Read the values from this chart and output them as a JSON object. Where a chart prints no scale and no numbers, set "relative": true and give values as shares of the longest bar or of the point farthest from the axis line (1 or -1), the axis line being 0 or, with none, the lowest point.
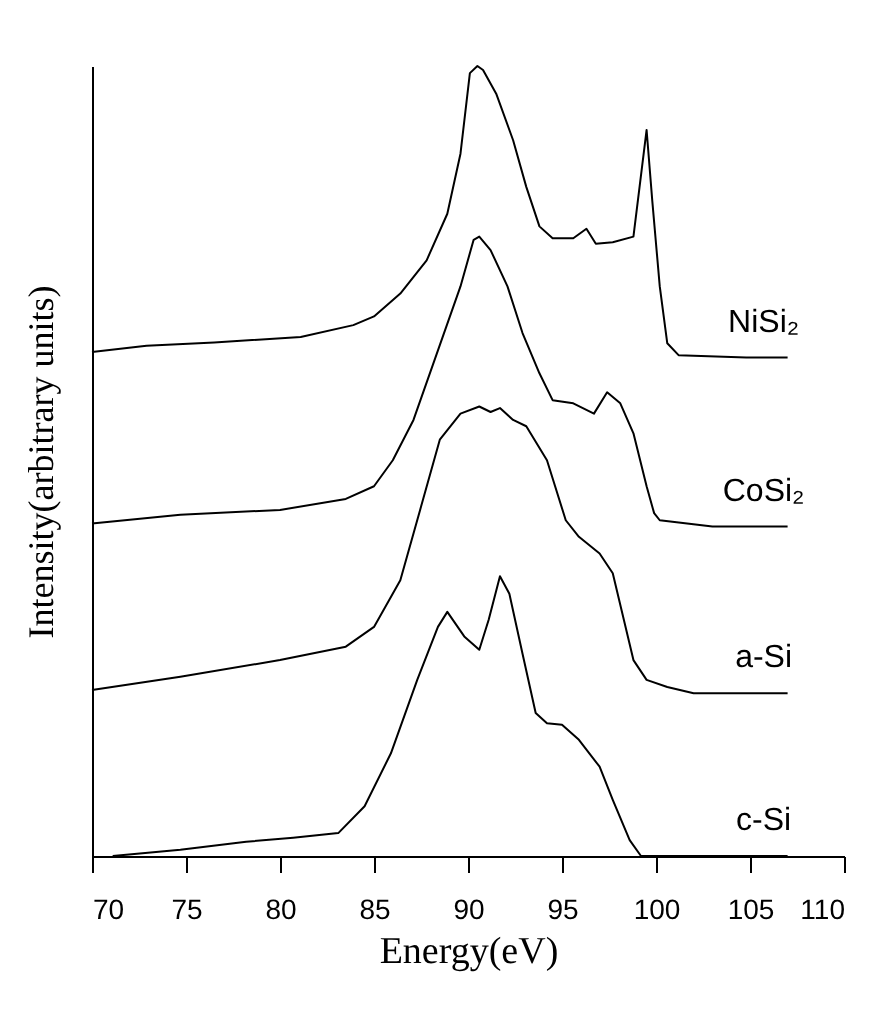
{
  "chart_data": {
    "type": "line",
    "relative": true,
    "xlabel": "Energy(eV)",
    "ylabel": "Intensity(arbitrary   units)",
    "xlim": [
      70,
      110
    ],
    "xticks": [
      70,
      75,
      80,
      85,
      90,
      95,
      100,
      105,
      110
    ],
    "legend": false,
    "grid": false,
    "marker": "none",
    "line_style": "solid",
    "series": [
      {
        "name": "NiSi₂",
        "color": "#000000",
        "x": [
          70,
          72.9,
          76.5,
          81.1,
          83.9,
          85.0,
          86.4,
          87.8,
          88.9,
          89.6,
          90.1,
          90.5,
          90.8,
          91.5,
          92.4,
          93.1,
          93.8,
          94.5,
          95.6,
          96.3,
          96.8,
          97.7,
          98.8,
          99.5,
          99.8,
          100.2,
          100.6,
          101.2,
          104.8,
          107.0
        ],
        "values": [
          0.638,
          0.646,
          0.65,
          0.657,
          0.672,
          0.683,
          0.712,
          0.754,
          0.813,
          0.889,
          0.991,
          1.0,
          0.995,
          0.965,
          0.906,
          0.847,
          0.797,
          0.782,
          0.782,
          0.794,
          0.775,
          0.777,
          0.784,
          0.919,
          0.83,
          0.721,
          0.649,
          0.634,
          0.631,
          0.631
        ]
      },
      {
        "name": "CoSi₂",
        "color": "#000000",
        "x": [
          70,
          74.7,
          80.0,
          83.5,
          85.0,
          86.0,
          87.1,
          89.6,
          90.3,
          90.6,
          91.2,
          92.1,
          92.9,
          93.8,
          94.5,
          95.6,
          96.7,
          97.4,
          98.1,
          98.8,
          99.5,
          99.9,
          100.2,
          103.0,
          107.0
        ],
        "values": [
          0.421,
          0.432,
          0.438,
          0.452,
          0.468,
          0.501,
          0.552,
          0.721,
          0.78,
          0.784,
          0.767,
          0.721,
          0.662,
          0.611,
          0.577,
          0.573,
          0.56,
          0.587,
          0.573,
          0.535,
          0.468,
          0.434,
          0.425,
          0.417,
          0.417
        ]
      },
      {
        "name": "a-Si",
        "color": "#000000",
        "x": [
          70,
          74.7,
          80.0,
          83.5,
          85.0,
          86.4,
          87.5,
          88.5,
          89.6,
          90.6,
          91.2,
          91.7,
          92.4,
          93.1,
          94.2,
          95.2,
          95.9,
          97.0,
          97.7,
          98.8,
          99.5,
          100.6,
          102.0,
          107.0
        ],
        "values": [
          0.21,
          0.227,
          0.248,
          0.265,
          0.29,
          0.349,
          0.442,
          0.527,
          0.56,
          0.569,
          0.562,
          0.567,
          0.552,
          0.544,
          0.501,
          0.425,
          0.404,
          0.383,
          0.358,
          0.248,
          0.223,
          0.214,
          0.206,
          0.206
        ]
      },
      {
        "name": "c-Si",
        "color": "#000000",
        "x": [
          71.1,
          74.7,
          78.2,
          80.7,
          83.1,
          84.5,
          85.9,
          87.3,
          88.4,
          88.9,
          89.8,
          90.6,
          91.1,
          91.7,
          92.2,
          92.9,
          93.6,
          94.2,
          95.0,
          95.9,
          97.0,
          97.7,
          98.6,
          99.2,
          107.0
        ],
        "values": [
          0,
          0.008,
          0.018,
          0.023,
          0.029,
          0.063,
          0.13,
          0.223,
          0.29,
          0.309,
          0.278,
          0.261,
          0.299,
          0.354,
          0.332,
          0.256,
          0.181,
          0.168,
          0.166,
          0.147,
          0.113,
          0.071,
          0.02,
          0,
          0
        ]
      }
    ]
  }
}
